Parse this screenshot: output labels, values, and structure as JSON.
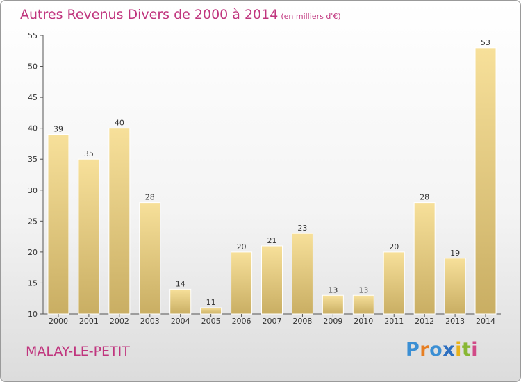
{
  "chart_data": {
    "type": "bar",
    "title": "Autres Revenus Divers de 2000 à 2014",
    "subtitle": "(en milliers d'€)",
    "categories": [
      "2000",
      "2001",
      "2002",
      "2003",
      "2004",
      "2005",
      "2006",
      "2007",
      "2008",
      "2009",
      "2010",
      "2011",
      "2012",
      "2013",
      "2014"
    ],
    "values": [
      39,
      35,
      40,
      28,
      14,
      11,
      20,
      21,
      23,
      13,
      13,
      20,
      28,
      19,
      53
    ],
    "ylim": [
      10,
      55
    ],
    "yticks": [
      10,
      15,
      20,
      25,
      30,
      35,
      40,
      45,
      50,
      55
    ],
    "grid": false,
    "bar_color_top": "#f7e09a",
    "bar_color_bottom": "#c9ae63"
  },
  "footer": {
    "commune": "MALAY-LE-PETIT",
    "logo_letters": [
      "P",
      "r",
      "o",
      "x",
      "i",
      "t",
      "i"
    ]
  }
}
